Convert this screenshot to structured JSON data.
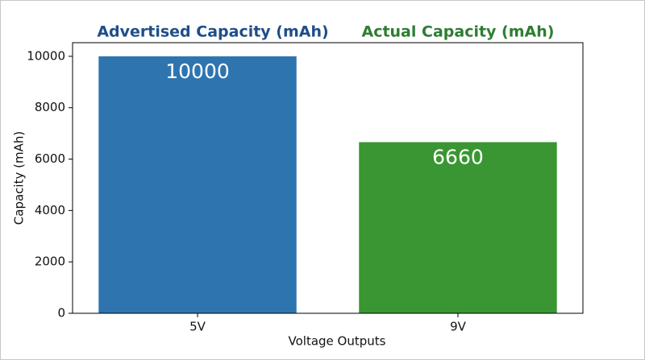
{
  "chart_data": {
    "type": "bar",
    "titles": [
      {
        "text": "Advertised Capacity (mAh)",
        "color": "#1f4e89"
      },
      {
        "text": "Actual Capacity (mAh)",
        "color": "#2e7d32"
      }
    ],
    "xlabel": "Voltage Outputs",
    "ylabel": "Capacity (mAh)",
    "categories": [
      "5V",
      "9V"
    ],
    "values": [
      10000,
      6660
    ],
    "colors": [
      "#2e75b0",
      "#3a9632"
    ],
    "ylim": [
      0,
      10530
    ],
    "yticks": [
      0,
      2000,
      4000,
      6000,
      8000,
      10000
    ],
    "grid": false
  }
}
